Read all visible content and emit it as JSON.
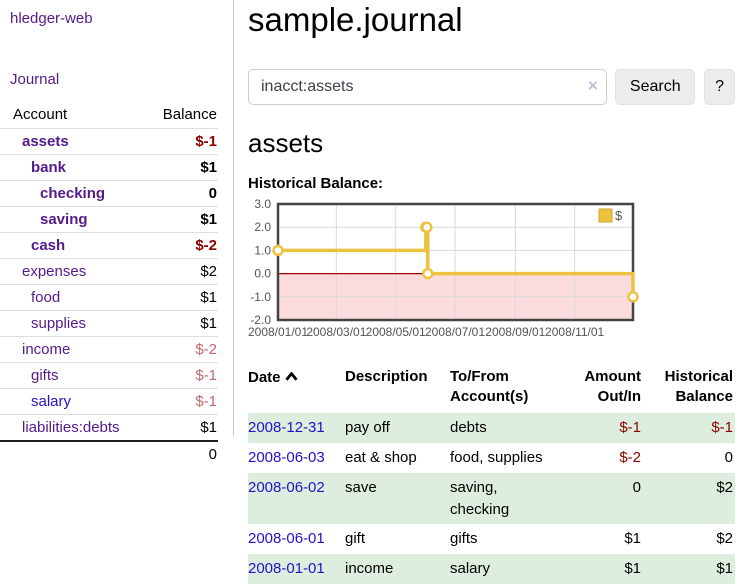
{
  "app": {
    "title": "hledger-web"
  },
  "colors": {
    "link_purple": "#551a8b",
    "link_blue": "#2411cc",
    "negative_strong": "#8b0000",
    "negative_soft": "#bf6a6e",
    "row_shade_green": "#deeede",
    "series_yellow": "#edc240",
    "negative_region_pink": "#fcdcdc",
    "zero_line_red": "#a40000"
  },
  "sidebar": {
    "journal_link": "Journal",
    "headers": {
      "account": "Account",
      "balance": "Balance"
    },
    "accounts": [
      {
        "name": "assets",
        "level": 1,
        "bold": true,
        "balance": "$-1",
        "balance_style": "neg-strong",
        "link_color": "purple"
      },
      {
        "name": "bank",
        "level": 2,
        "bold": true,
        "balance": "$1",
        "balance_style": "pos",
        "link_color": "purple"
      },
      {
        "name": "checking",
        "level": 3,
        "bold": true,
        "balance": "0",
        "balance_style": "pos",
        "link_color": "purple"
      },
      {
        "name": "saving",
        "level": 3,
        "bold": true,
        "balance": "$1",
        "balance_style": "pos",
        "link_color": "purple"
      },
      {
        "name": "cash",
        "level": 2,
        "bold": true,
        "balance": "$-2",
        "balance_style": "neg-strong",
        "link_color": "purple"
      },
      {
        "name": "expenses",
        "level": 1,
        "bold": false,
        "balance": "$2",
        "balance_style": "pos",
        "link_color": "purple"
      },
      {
        "name": "food",
        "level": 2,
        "bold": false,
        "balance": "$1",
        "balance_style": "pos",
        "link_color": "purple"
      },
      {
        "name": "supplies",
        "level": 2,
        "bold": false,
        "balance": "$1",
        "balance_style": "pos",
        "link_color": "purple"
      },
      {
        "name": "income",
        "level": 1,
        "bold": false,
        "balance": "$-2",
        "balance_style": "neg-soft",
        "link_color": "purple"
      },
      {
        "name": "gifts",
        "level": 2,
        "bold": false,
        "balance": "$-1",
        "balance_style": "neg-soft",
        "link_color": "purple"
      },
      {
        "name": "salary",
        "level": 2,
        "bold": false,
        "balance": "$-1",
        "balance_style": "neg-soft",
        "link_color": "blue"
      },
      {
        "name": "liabilities:debts",
        "level": 1,
        "bold": false,
        "balance": "$1",
        "balance_style": "pos",
        "link_color": "purple"
      }
    ],
    "total": "0"
  },
  "header": {
    "title": "sample.journal"
  },
  "search": {
    "value": "inacct:assets",
    "clear_icon": "×",
    "button_label": "Search",
    "help_label": "?"
  },
  "account_page": {
    "title": "assets",
    "chart_label": "Historical Balance:"
  },
  "chart_data": {
    "type": "line",
    "steps": true,
    "title": "Historical Balance:",
    "series": [
      {
        "name": "$",
        "color": "#edc240",
        "points": [
          [
            "2008-01-01",
            1
          ],
          [
            "2008-06-01",
            2
          ],
          [
            "2008-06-02",
            2
          ],
          [
            "2008-06-03",
            0
          ],
          [
            "2008-12-31",
            -1
          ]
        ]
      }
    ],
    "x_range": [
      "2008-01-01",
      "2008-12-31"
    ],
    "ylim": [
      -2,
      3
    ],
    "y_ticks": [
      {
        "value": 3,
        "label": "3.0"
      },
      {
        "value": 2,
        "label": "2.0"
      },
      {
        "value": 1,
        "label": "1.0"
      },
      {
        "value": 0,
        "label": "0.0"
      },
      {
        "value": -1,
        "label": "-1.0"
      },
      {
        "value": -2,
        "label": "-2.0"
      }
    ],
    "x_ticks": [
      {
        "date": "2008-01-01",
        "label": "2008/01/01"
      },
      {
        "date": "2008-03-01",
        "label": "2008/03/01"
      },
      {
        "date": "2008-05-01",
        "label": "2008/05/01"
      },
      {
        "date": "2008-07-01",
        "label": "2008/07/01"
      },
      {
        "date": "2008-09-01",
        "label": "2008/09/01"
      },
      {
        "date": "2008-11-01",
        "label": "2008/11/01"
      }
    ],
    "grid": true,
    "legend": {
      "position": "top-right",
      "label": "$"
    },
    "negative_region_color": "#fcdcdc",
    "zero_line_color": "#a40000"
  },
  "register": {
    "headers": {
      "date": "Date",
      "description": "Description",
      "tofrom": "To/From Account(s)",
      "amount": "Amount Out/In",
      "balance": "Historical Balance"
    },
    "sort_icon": "sort-ascending",
    "rows": [
      {
        "date": "2008-12-31",
        "description": "pay off",
        "accounts": "debts",
        "amount": "$-1",
        "amount_neg": true,
        "balance": "$-1",
        "balance_neg": true,
        "shaded": true
      },
      {
        "date": "2008-06-03",
        "description": "eat & shop",
        "accounts": "food, supplies",
        "amount": "$-2",
        "amount_neg": true,
        "balance": "0",
        "balance_neg": false,
        "shaded": false
      },
      {
        "date": "2008-06-02",
        "description": "save",
        "accounts": "saving, checking",
        "amount": "0",
        "amount_neg": false,
        "balance": "$2",
        "balance_neg": false,
        "shaded": true
      },
      {
        "date": "2008-06-01",
        "description": "gift",
        "accounts": "gifts",
        "amount": "$1",
        "amount_neg": false,
        "balance": "$2",
        "balance_neg": false,
        "shaded": false
      },
      {
        "date": "2008-01-01",
        "description": "income",
        "accounts": "salary",
        "amount": "$1",
        "amount_neg": false,
        "balance": "$1",
        "balance_neg": false,
        "shaded": true
      }
    ]
  }
}
